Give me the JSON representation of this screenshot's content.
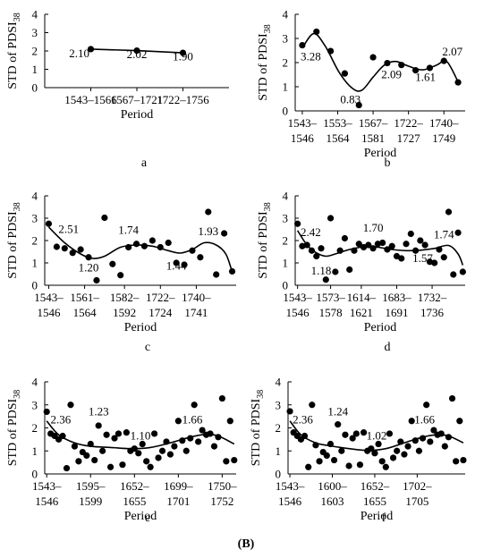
{
  "figure_label": "(B)",
  "chart_data": [
    {
      "type": "scatter",
      "panel": "a",
      "ylabel": "STD of PDSI",
      "ylabel_sub": "38",
      "xlabel": "Period",
      "ylim": [
        0,
        4
      ],
      "yticks": [
        0,
        1,
        2,
        3,
        4
      ],
      "xlim": [
        0,
        4
      ],
      "xticks": [
        {
          "x": 1,
          "label": [
            "1543–1566"
          ]
        },
        {
          "x": 2,
          "label": [
            "1567–1721"
          ]
        },
        {
          "x": 3,
          "label": [
            "1722–1756"
          ]
        }
      ],
      "points": [
        [
          1,
          2.1
        ],
        [
          2,
          2.02
        ],
        [
          3,
          1.9
        ]
      ],
      "trend": [
        [
          1,
          2.1
        ],
        [
          2,
          2.02
        ],
        [
          3,
          1.9
        ]
      ],
      "annotations": [
        {
          "text": "2.10",
          "x": 0.75,
          "y": 1.65
        },
        {
          "text": "2.02",
          "x": 2.0,
          "y": 1.62
        },
        {
          "text": "1.90",
          "x": 3.0,
          "y": 1.48
        }
      ]
    },
    {
      "type": "scatter",
      "panel": "b",
      "ylabel": "STD of PDSI",
      "ylabel_sub": "38",
      "xlabel": "Period",
      "ylim": [
        0,
        4
      ],
      "yticks": [
        0,
        1,
        2,
        3,
        4
      ],
      "xlim": [
        0.5,
        12.5
      ],
      "xticks": [
        {
          "x": 1,
          "label": [
            "1543–",
            "1546"
          ]
        },
        {
          "x": 3.5,
          "label": [
            "1553–",
            "1564"
          ]
        },
        {
          "x": 6,
          "label": [
            "1567–",
            "1581"
          ]
        },
        {
          "x": 8.5,
          "label": [
            "1722–",
            "1727"
          ]
        },
        {
          "x": 11,
          "label": [
            "1740–",
            "1749"
          ]
        }
      ],
      "points": [
        [
          1,
          2.72
        ],
        [
          2,
          3.28
        ],
        [
          3,
          2.48
        ],
        [
          4,
          1.55
        ],
        [
          5,
          0.24
        ],
        [
          6,
          2.22
        ],
        [
          7,
          1.98
        ],
        [
          8,
          1.9
        ],
        [
          9,
          1.68
        ],
        [
          10,
          1.78
        ],
        [
          11,
          2.07
        ],
        [
          12,
          1.18
        ]
      ],
      "trend": [
        [
          1,
          2.6
        ],
        [
          1.8,
          3.2
        ],
        [
          2.6,
          2.7
        ],
        [
          3.6,
          1.6
        ],
        [
          4.5,
          0.95
        ],
        [
          5.2,
          0.85
        ],
        [
          6,
          1.4
        ],
        [
          6.8,
          1.9
        ],
        [
          7.6,
          2.05
        ],
        [
          8.5,
          1.85
        ],
        [
          9.5,
          1.7
        ],
        [
          10.5,
          1.9
        ],
        [
          11.2,
          2.05
        ],
        [
          12,
          1.2
        ]
      ],
      "annotations": [
        {
          "text": "3.28",
          "x": 1.6,
          "y": 2.1
        },
        {
          "text": "0.83",
          "x": 4.4,
          "y": 0.32
        },
        {
          "text": "2.09",
          "x": 7.3,
          "y": 1.35
        },
        {
          "text": "1.61",
          "x": 9.7,
          "y": 1.25
        },
        {
          "text": "2.07",
          "x": 11.6,
          "y": 2.3
        }
      ]
    },
    {
      "type": "scatter",
      "panel": "c",
      "ylabel": "STD of PDSI",
      "ylabel_sub": "38",
      "xlabel": "Period",
      "ylim": [
        0,
        4
      ],
      "yticks": [
        0,
        1,
        2,
        3,
        4
      ],
      "xlim": [
        0.5,
        24.5
      ],
      "xticks": [
        {
          "x": 1,
          "label": [
            "1543–",
            "1546"
          ]
        },
        {
          "x": 5.5,
          "label": [
            "1561–",
            "1564"
          ]
        },
        {
          "x": 10.5,
          "label": [
            "1582–",
            "1592"
          ]
        },
        {
          "x": 15,
          "label": [
            "1722–",
            "1724"
          ]
        },
        {
          "x": 19.5,
          "label": [
            "1740–",
            "1741"
          ]
        }
      ],
      "points": [
        [
          1,
          2.75
        ],
        [
          2,
          1.72
        ],
        [
          3,
          1.65
        ],
        [
          4,
          1.45
        ],
        [
          5,
          1.6
        ],
        [
          6,
          1.25
        ],
        [
          7,
          0.22
        ],
        [
          8,
          3.02
        ],
        [
          9,
          0.95
        ],
        [
          10,
          0.45
        ],
        [
          11,
          1.7
        ],
        [
          12,
          1.85
        ],
        [
          13,
          1.75
        ],
        [
          14,
          2.0
        ],
        [
          15,
          1.7
        ],
        [
          16,
          1.9
        ],
        [
          17,
          1.0
        ],
        [
          18,
          0.92
        ],
        [
          19,
          1.55
        ],
        [
          20,
          1.25
        ],
        [
          21,
          3.28
        ],
        [
          22,
          0.48
        ],
        [
          23,
          2.32
        ],
        [
          24,
          0.62
        ]
      ],
      "trend": [
        [
          1,
          2.6
        ],
        [
          3,
          1.9
        ],
        [
          5,
          1.4
        ],
        [
          6.5,
          1.2
        ],
        [
          8,
          1.3
        ],
        [
          10,
          1.7
        ],
        [
          12,
          1.8
        ],
        [
          14,
          1.75
        ],
        [
          16,
          1.55
        ],
        [
          17.5,
          1.44
        ],
        [
          19,
          1.6
        ],
        [
          20.5,
          1.9
        ],
        [
          22,
          1.8
        ],
        [
          23.2,
          1.4
        ],
        [
          24,
          0.6
        ]
      ],
      "annotations": [
        {
          "text": "2.51",
          "x": 3.5,
          "y": 2.35
        },
        {
          "text": "1.20",
          "x": 6.0,
          "y": 0.62
        },
        {
          "text": "1.74",
          "x": 11.0,
          "y": 2.3
        },
        {
          "text": "1.44",
          "x": 17.0,
          "y": 0.7
        },
        {
          "text": "1.93",
          "x": 21.0,
          "y": 2.25
        }
      ]
    },
    {
      "type": "scatter",
      "panel": "d",
      "ylabel": "STD of PDSI",
      "ylabel_sub": "38",
      "xlabel": "Period",
      "ylim": [
        0,
        4
      ],
      "yticks": [
        0,
        1,
        2,
        3,
        4
      ],
      "xlim": [
        0.5,
        36.5
      ],
      "xticks": [
        {
          "x": 1,
          "label": [
            "1543–",
            "1546"
          ]
        },
        {
          "x": 8,
          "label": [
            "1573–",
            "1578"
          ]
        },
        {
          "x": 14.5,
          "label": [
            "1614–",
            "1621"
          ]
        },
        {
          "x": 22,
          "label": [
            "1683–",
            "1691"
          ]
        },
        {
          "x": 29.5,
          "label": [
            "1732–",
            "1736"
          ]
        }
      ],
      "points": [
        [
          1,
          2.75
        ],
        [
          2,
          1.75
        ],
        [
          3,
          1.8
        ],
        [
          4,
          1.55
        ],
        [
          5,
          1.3
        ],
        [
          6,
          1.65
        ],
        [
          7,
          0.25
        ],
        [
          8,
          3.0
        ],
        [
          9,
          0.6
        ],
        [
          10,
          1.55
        ],
        [
          11,
          2.1
        ],
        [
          12,
          0.7
        ],
        [
          13,
          1.55
        ],
        [
          14,
          1.85
        ],
        [
          15,
          1.7
        ],
        [
          16,
          1.8
        ],
        [
          17,
          1.65
        ],
        [
          18,
          1.85
        ],
        [
          19,
          1.9
        ],
        [
          20,
          1.6
        ],
        [
          21,
          1.75
        ],
        [
          22,
          1.3
        ],
        [
          23,
          1.2
        ],
        [
          24,
          1.85
        ],
        [
          25,
          2.3
        ],
        [
          26,
          1.55
        ],
        [
          27,
          2.0
        ],
        [
          28,
          1.8
        ],
        [
          29,
          1.05
        ],
        [
          30,
          1.0
        ],
        [
          31,
          1.6
        ],
        [
          32,
          1.25
        ],
        [
          33,
          3.28
        ],
        [
          34,
          0.48
        ],
        [
          35,
          2.35
        ],
        [
          36,
          0.6
        ]
      ],
      "trend": [
        [
          1,
          2.45
        ],
        [
          3,
          1.8
        ],
        [
          5,
          1.45
        ],
        [
          7,
          1.3
        ],
        [
          9,
          1.4
        ],
        [
          12,
          1.6
        ],
        [
          15,
          1.72
        ],
        [
          18,
          1.7
        ],
        [
          21,
          1.6
        ],
        [
          24,
          1.55
        ],
        [
          27,
          1.57
        ],
        [
          30,
          1.65
        ],
        [
          33,
          1.78
        ],
        [
          35,
          1.4
        ],
        [
          36,
          0.9
        ]
      ],
      "annotations": [
        {
          "text": "2.42",
          "x": 3.8,
          "y": 2.2
        },
        {
          "text": "1.18",
          "x": 6.0,
          "y": 0.48
        },
        {
          "text": "1.70",
          "x": 17.0,
          "y": 2.4
        },
        {
          "text": "1.57",
          "x": 27.5,
          "y": 1.05
        },
        {
          "text": "1.74",
          "x": 32.0,
          "y": 2.1
        }
      ]
    },
    {
      "type": "scatter",
      "panel": "e",
      "ylabel": "STD of PDSI",
      "ylabel_sub": "38",
      "xlabel": "Period",
      "ylim": [
        0,
        4
      ],
      "yticks": [
        0,
        1,
        2,
        3,
        4
      ],
      "xlim": [
        0.5,
        48.5
      ],
      "xticks": [
        {
          "x": 1,
          "label": [
            "1543–",
            "1546"
          ]
        },
        {
          "x": 12,
          "label": [
            "1595–",
            "1599"
          ]
        },
        {
          "x": 23,
          "label": [
            "1652–",
            "1655"
          ]
        },
        {
          "x": 34,
          "label": [
            "1699–",
            "1701"
          ]
        },
        {
          "x": 45,
          "label": [
            "1750–",
            "1752"
          ]
        }
      ],
      "points": [
        [
          1,
          2.7
        ],
        [
          2,
          1.75
        ],
        [
          3,
          1.65
        ],
        [
          4,
          1.5
        ],
        [
          5,
          1.65
        ],
        [
          6,
          0.25
        ],
        [
          7,
          3.0
        ],
        [
          8,
          1.2
        ],
        [
          9,
          0.55
        ],
        [
          10,
          0.95
        ],
        [
          11,
          0.8
        ],
        [
          12,
          1.3
        ],
        [
          13,
          0.6
        ],
        [
          14,
          2.1
        ],
        [
          15,
          1.0
        ],
        [
          16,
          1.7
        ],
        [
          17,
          0.3
        ],
        [
          18,
          1.55
        ],
        [
          19,
          1.75
        ],
        [
          20,
          0.4
        ],
        [
          21,
          1.8
        ],
        [
          22,
          1.0
        ],
        [
          23,
          1.1
        ],
        [
          24,
          0.9
        ],
        [
          25,
          1.3
        ],
        [
          26,
          0.55
        ],
        [
          27,
          0.3
        ],
        [
          28,
          1.75
        ],
        [
          29,
          0.7
        ],
        [
          30,
          1.0
        ],
        [
          31,
          1.4
        ],
        [
          32,
          0.85
        ],
        [
          33,
          1.2
        ],
        [
          34,
          2.3
        ],
        [
          35,
          1.45
        ],
        [
          36,
          1.0
        ],
        [
          37,
          1.55
        ],
        [
          38,
          3.0
        ],
        [
          39,
          1.4
        ],
        [
          40,
          1.9
        ],
        [
          41,
          1.7
        ],
        [
          42,
          1.75
        ],
        [
          43,
          1.2
        ],
        [
          44,
          1.6
        ],
        [
          45,
          3.28
        ],
        [
          46,
          0.55
        ],
        [
          47,
          2.3
        ],
        [
          48,
          0.6
        ]
      ],
      "trend": [
        [
          1,
          2.3
        ],
        [
          4,
          1.7
        ],
        [
          8,
          1.35
        ],
        [
          12,
          1.2
        ],
        [
          17,
          1.15
        ],
        [
          22,
          1.1
        ],
        [
          27,
          1.15
        ],
        [
          32,
          1.35
        ],
        [
          37,
          1.6
        ],
        [
          41,
          1.72
        ],
        [
          44,
          1.65
        ],
        [
          48,
          1.3
        ]
      ],
      "annotations": [
        {
          "text": "2.36",
          "x": 4.5,
          "y": 2.2
        },
        {
          "text": "1.23",
          "x": 14.0,
          "y": 2.55
        },
        {
          "text": "1.10",
          "x": 24.5,
          "y": 1.5
        },
        {
          "text": "1.66",
          "x": 37.5,
          "y": 2.2
        }
      ]
    },
    {
      "type": "scatter",
      "panel": "f",
      "ylabel": "STD of PDSI",
      "ylabel_sub": "38",
      "xlabel": "Period",
      "ylim": [
        0,
        4
      ],
      "yticks": [
        0,
        1,
        2,
        3,
        4
      ],
      "xlim": [
        0.5,
        48.5
      ],
      "xticks": [
        {
          "x": 1,
          "label": [
            "1543–",
            "1546"
          ]
        },
        {
          "x": 12.5,
          "label": [
            "1600–",
            "1603"
          ]
        },
        {
          "x": 24,
          "label": [
            "1652–",
            "1655"
          ]
        },
        {
          "x": 35.5,
          "label": [
            "1702–",
            "1705"
          ]
        }
      ],
      "points": [
        [
          1,
          2.72
        ],
        [
          2,
          1.8
        ],
        [
          3,
          1.65
        ],
        [
          4,
          1.5
        ],
        [
          5,
          1.65
        ],
        [
          6,
          0.3
        ],
        [
          7,
          3.0
        ],
        [
          8,
          1.25
        ],
        [
          9,
          0.55
        ],
        [
          10,
          0.95
        ],
        [
          11,
          0.8
        ],
        [
          12,
          1.3
        ],
        [
          13,
          0.6
        ],
        [
          14,
          2.15
        ],
        [
          15,
          1.0
        ],
        [
          16,
          1.7
        ],
        [
          17,
          0.35
        ],
        [
          18,
          1.55
        ],
        [
          19,
          1.75
        ],
        [
          20,
          0.4
        ],
        [
          21,
          1.8
        ],
        [
          22,
          1.0
        ],
        [
          23,
          1.1
        ],
        [
          24,
          0.9
        ],
        [
          25,
          1.3
        ],
        [
          26,
          0.55
        ],
        [
          27,
          0.3
        ],
        [
          28,
          1.75
        ],
        [
          29,
          0.7
        ],
        [
          30,
          1.0
        ],
        [
          31,
          1.4
        ],
        [
          32,
          0.85
        ],
        [
          33,
          1.2
        ],
        [
          34,
          2.3
        ],
        [
          35,
          1.45
        ],
        [
          36,
          1.0
        ],
        [
          37,
          1.55
        ],
        [
          38,
          3.0
        ],
        [
          39,
          1.4
        ],
        [
          40,
          1.9
        ],
        [
          41,
          1.7
        ],
        [
          42,
          1.75
        ],
        [
          43,
          1.2
        ],
        [
          44,
          1.6
        ],
        [
          45,
          3.28
        ],
        [
          46,
          0.55
        ],
        [
          47,
          2.3
        ],
        [
          48,
          0.6
        ]
      ],
      "trend": [
        [
          1,
          2.3
        ],
        [
          4,
          1.7
        ],
        [
          8,
          1.35
        ],
        [
          12,
          1.22
        ],
        [
          17,
          1.1
        ],
        [
          22,
          1.02
        ],
        [
          27,
          1.1
        ],
        [
          32,
          1.35
        ],
        [
          37,
          1.6
        ],
        [
          41,
          1.7
        ],
        [
          44,
          1.65
        ],
        [
          48,
          1.35
        ]
      ],
      "annotations": [
        {
          "text": "2.36",
          "x": 4.5,
          "y": 2.2
        },
        {
          "text": "1.24",
          "x": 14.0,
          "y": 2.55
        },
        {
          "text": "1.02",
          "x": 24.5,
          "y": 1.5
        },
        {
          "text": "1.66",
          "x": 37.5,
          "y": 2.2
        }
      ]
    }
  ]
}
